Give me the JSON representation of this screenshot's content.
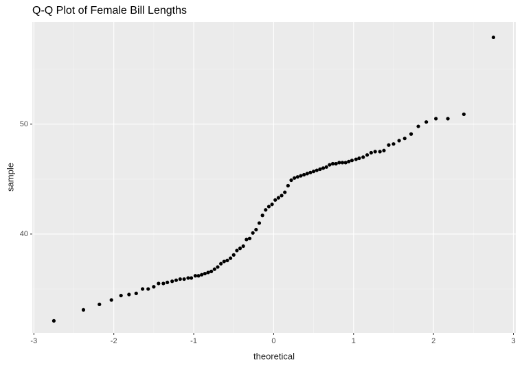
{
  "chart_data": {
    "type": "scatter",
    "title": "Q-Q Plot of Female Bill Lengths",
    "x_label": "theoretical",
    "y_label": "sample",
    "x": [
      -2.75,
      -2.38,
      -2.18,
      -2.03,
      -1.91,
      -1.81,
      -1.72,
      -1.64,
      -1.57,
      -1.5,
      -1.44,
      -1.38,
      -1.33,
      -1.27,
      -1.22,
      -1.17,
      -1.12,
      -1.07,
      -1.03,
      -0.98,
      -0.94,
      -0.9,
      -0.86,
      -0.82,
      -0.78,
      -0.74,
      -0.7,
      -0.66,
      -0.62,
      -0.58,
      -0.54,
      -0.5,
      -0.46,
      -0.42,
      -0.38,
      -0.34,
      -0.3,
      -0.26,
      -0.22,
      -0.18,
      -0.14,
      -0.1,
      -0.06,
      -0.02,
      0.02,
      0.06,
      0.1,
      0.14,
      0.18,
      0.22,
      0.26,
      0.3,
      0.34,
      0.38,
      0.42,
      0.46,
      0.5,
      0.54,
      0.58,
      0.62,
      0.66,
      0.7,
      0.74,
      0.78,
      0.82,
      0.86,
      0.9,
      0.94,
      0.98,
      1.03,
      1.07,
      1.12,
      1.17,
      1.22,
      1.27,
      1.33,
      1.38,
      1.44,
      1.5,
      1.57,
      1.64,
      1.72,
      1.81,
      1.91,
      2.03,
      2.18,
      2.38,
      2.75
    ],
    "values": [
      32.1,
      33.1,
      33.6,
      34.0,
      34.4,
      34.5,
      34.6,
      35.0,
      35.0,
      35.2,
      35.5,
      35.5,
      35.6,
      35.7,
      35.8,
      35.9,
      35.9,
      36.0,
      36.0,
      36.2,
      36.2,
      36.3,
      36.4,
      36.5,
      36.6,
      36.8,
      37.0,
      37.3,
      37.5,
      37.6,
      37.8,
      38.1,
      38.5,
      38.7,
      38.9,
      39.5,
      39.6,
      40.1,
      40.4,
      41.0,
      41.7,
      42.2,
      42.5,
      42.7,
      43.1,
      43.3,
      43.5,
      43.8,
      44.4,
      44.9,
      45.1,
      45.2,
      45.3,
      45.4,
      45.5,
      45.6,
      45.7,
      45.8,
      45.9,
      46.0,
      46.1,
      46.3,
      46.4,
      46.4,
      46.5,
      46.5,
      46.5,
      46.6,
      46.7,
      46.8,
      46.9,
      47.0,
      47.2,
      47.4,
      47.5,
      47.5,
      47.6,
      48.1,
      48.2,
      48.5,
      48.7,
      49.1,
      49.8,
      50.2,
      50.5,
      50.5,
      50.9,
      57.9
    ],
    "color": "#000000",
    "xlim": [
      -3.02,
      3.03
    ],
    "xticks": [
      -3,
      -2,
      -1,
      0,
      1,
      2,
      3
    ],
    "ylim": [
      31.0,
      59.3
    ],
    "yticks": [
      40,
      50
    ],
    "grid": true
  }
}
